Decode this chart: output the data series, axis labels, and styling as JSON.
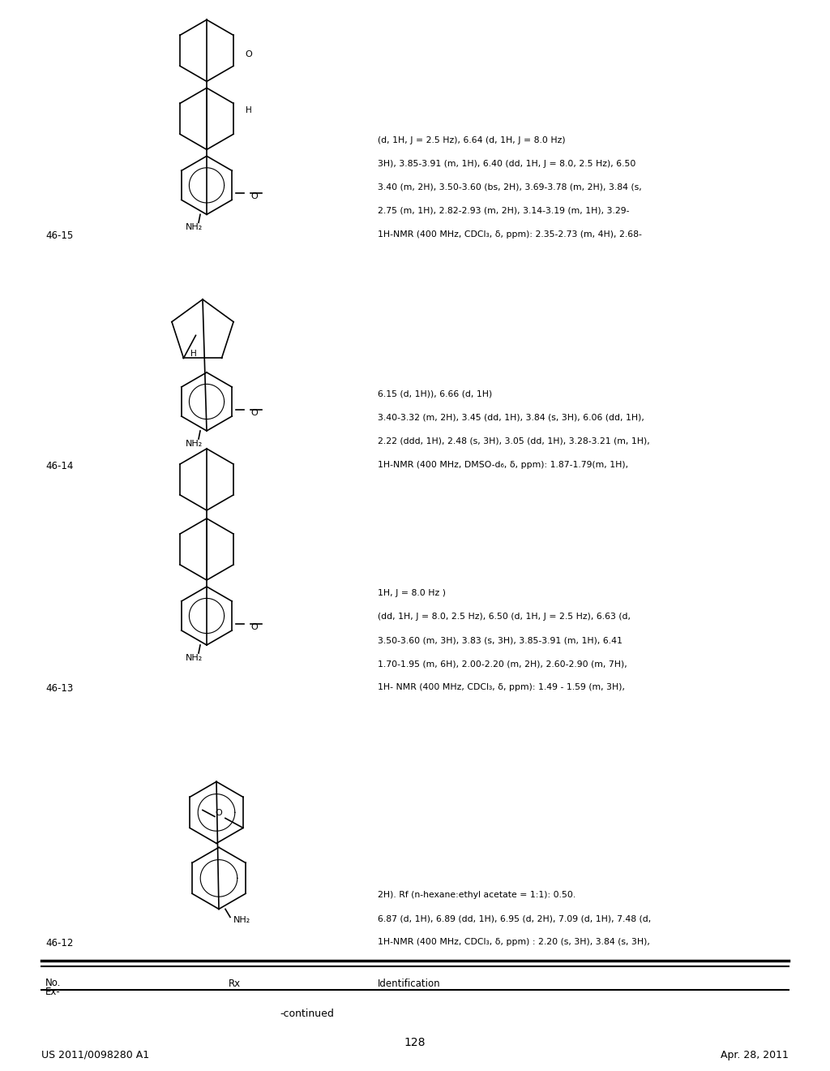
{
  "page_header_left": "US 2011/0098280 A1",
  "page_header_right": "Apr. 28, 2011",
  "page_number": "128",
  "table_title": "-continued",
  "entries": [
    {
      "id": "46-12",
      "nmr_lines": [
        "1H-NMR (400 MHz, CDCl₃, δ, ppm) : 2.20 (s, 3H), 3.84 (s, 3H),",
        "6.87 (d, 1H), 6.89 (dd, 1H), 6.95 (d, 2H), 7.09 (d, 1H), 7.48 (d,",
        "2H). Rf (n-hexane:ethyl acetate = 1:1): 0.50."
      ]
    },
    {
      "id": "46-13",
      "nmr_lines": [
        "1H- NMR (400 MHz, CDCl₃, δ, ppm): 1.49 - 1.59 (m, 3H),",
        "1.70-1.95 (m, 6H), 2.00-2.20 (m, 2H), 2.60-2.90 (m, 7H),",
        "3.50-3.60 (m, 3H), 3.83 (s, 3H), 3.85-3.91 (m, 1H), 6.41",
        "(dd, 1H, J = 8.0, 2.5 Hz), 6.50 (d, 1H, J = 2.5 Hz), 6.63 (d,",
        "1H, J = 8.0 Hz )"
      ]
    },
    {
      "id": "46-14",
      "nmr_lines": [
        "1H-NMR (400 MHz, DMSO-d₆, δ, ppm): 1.87-1.79(m, 1H),",
        "2.22 (ddd, 1H), 2.48 (s, 3H), 3.05 (dd, 1H), 3.28-3.21 (m, 1H),",
        "3.40-3.32 (m, 2H), 3.45 (dd, 1H), 3.84 (s, 3H), 6.06 (dd, 1H),",
        "6.15 (d, 1H)), 6.66 (d, 1H)"
      ]
    },
    {
      "id": "46-15",
      "nmr_lines": [
        "1H-NMR (400 MHz, CDCl₃, δ, ppm): 2.35-2.73 (m, 4H), 2.68-",
        "2.75 (m, 1H), 2.82-2.93 (m, 2H), 3.14-3.19 (m, 1H), 3.29-",
        "3.40 (m, 2H), 3.50-3.60 (bs, 2H), 3.69-3.78 (m, 2H), 3.84 (s,",
        "3H), 3.85-3.91 (m, 1H), 6.40 (dd, 1H, J = 8.0, 2.5 Hz), 6.50",
        "(d, 1H, J = 2.5 Hz), 6.64 (d, 1H, J = 8.0 Hz)"
      ]
    }
  ],
  "bg_color": "#ffffff"
}
